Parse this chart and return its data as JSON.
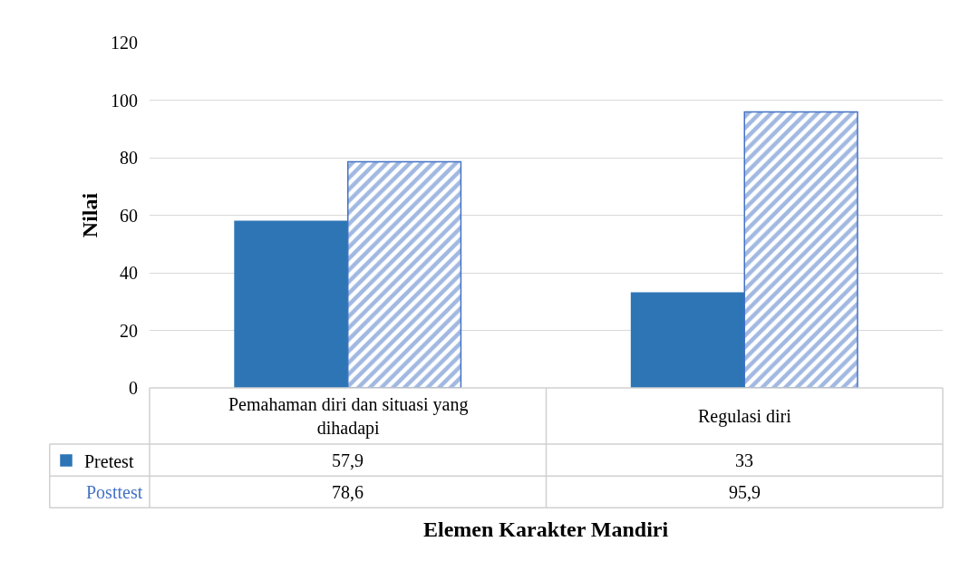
{
  "chart_data": {
    "type": "bar",
    "xlabel": "Elemen Karakter Mandiri",
    "ylabel": "Nilai",
    "categories": [
      "Pemahaman diri dan situasi yang dihadapi",
      "Regulasi diri"
    ],
    "series": [
      {
        "name": "Pretest",
        "color": "#2e75b6",
        "values": [
          57.9,
          33
        ],
        "value_labels": [
          "57,9",
          "33"
        ]
      },
      {
        "name": "Posttest",
        "color": "#4472c4",
        "values": [
          78.6,
          95.9
        ],
        "value_labels": [
          "78,6",
          "95,9"
        ]
      }
    ],
    "ylim": [
      0,
      120
    ],
    "yticks": [
      0,
      20,
      40,
      60,
      80,
      100,
      120
    ],
    "grid": "y",
    "legend": "bottom"
  }
}
